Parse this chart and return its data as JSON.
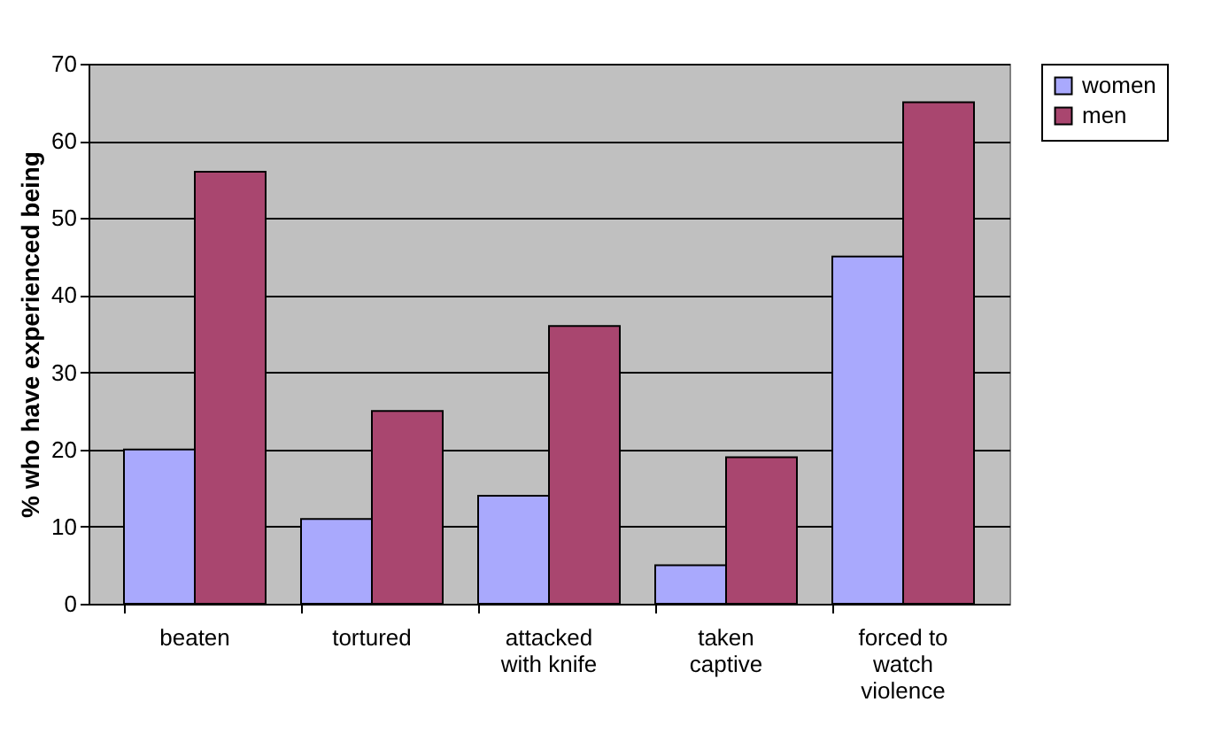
{
  "chart_data": {
    "type": "bar",
    "ylabel": "% who have experienced being",
    "categories": [
      "beaten",
      "tortured",
      "attacked with knife",
      "taken captive",
      "forced to watch violence"
    ],
    "series": [
      {
        "name": "women",
        "color": "#a9a9fd",
        "values": [
          20,
          11,
          14,
          5,
          45
        ]
      },
      {
        "name": "men",
        "color": "#a9466f",
        "values": [
          56,
          25,
          36,
          19,
          65
        ]
      }
    ],
    "ylim": [
      0,
      70
    ],
    "yticks": [
      0,
      10,
      20,
      30,
      40,
      50,
      60,
      70
    ],
    "grid": "y",
    "legend": "right"
  }
}
